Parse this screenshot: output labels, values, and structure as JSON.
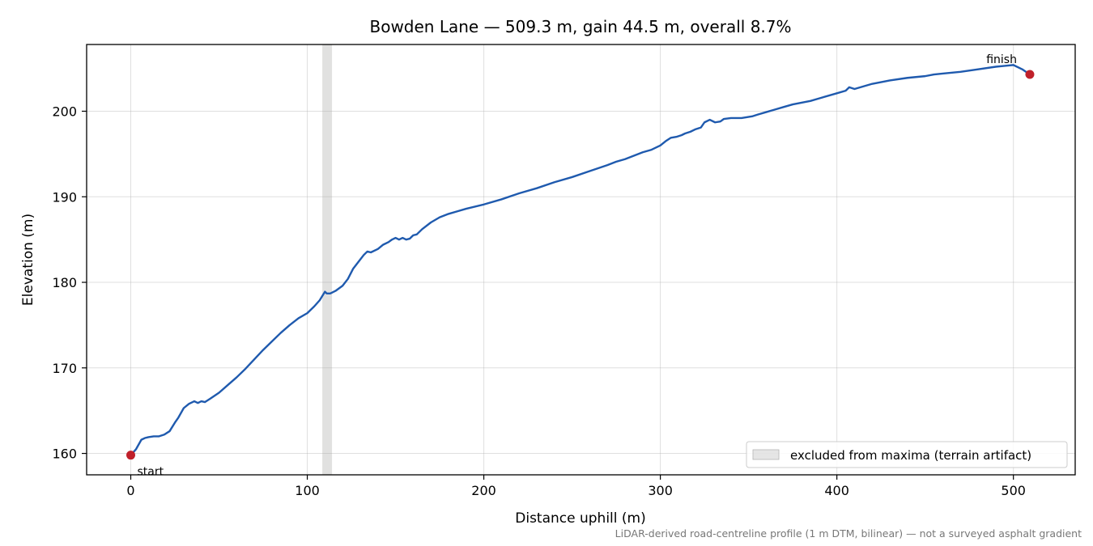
{
  "chart_data": {
    "type": "line",
    "title": "Bowden Lane — 509.3 m, gain 44.5 m, overall 8.7%",
    "xlabel": "Distance uphill (m)",
    "ylabel": "Elevation (m)",
    "xlim": [
      -25,
      535
    ],
    "ylim": [
      157.5,
      207.8
    ],
    "xticks": [
      0,
      100,
      200,
      300,
      400,
      500
    ],
    "yticks": [
      160,
      170,
      180,
      190,
      200
    ],
    "grid": true,
    "legend_position": "lower-right",
    "footnote": "LiDAR-derived road-centreline profile (1 m DTM, bilinear) — not a surveyed asphalt gradient",
    "excluded_band": {
      "x_start": 108.5,
      "x_end": 114,
      "label": "excluded from maxima (terrain artifact)"
    },
    "series": [
      {
        "color": "#1f5aae",
        "x": [
          0,
          3,
          6,
          8,
          10,
          13,
          16,
          19,
          22,
          25,
          27,
          30,
          33,
          36,
          38,
          40,
          42,
          45,
          50,
          55,
          60,
          65,
          70,
          75,
          80,
          85,
          90,
          95,
          100,
          104,
          107,
          110,
          111,
          113,
          116,
          120,
          123,
          126,
          129,
          132,
          134,
          136,
          140,
          143,
          146,
          148,
          150,
          152,
          154,
          156,
          158,
          160,
          162,
          165,
          170,
          175,
          180,
          185,
          190,
          200,
          210,
          220,
          230,
          240,
          250,
          260,
          270,
          275,
          280,
          290,
          295,
          300,
          303,
          306,
          309,
          312,
          314,
          317,
          320,
          323,
          325,
          328,
          331,
          334,
          336,
          340,
          346,
          352,
          355,
          360,
          365,
          370,
          375,
          380,
          385,
          390,
          400,
          405,
          407,
          410,
          420,
          430,
          440,
          450,
          455,
          460,
          470,
          480,
          490,
          495,
          500,
          505,
          509.3
        ],
        "y": [
          159.8,
          160.5,
          161.6,
          161.8,
          161.9,
          162.0,
          162.0,
          162.2,
          162.6,
          163.6,
          164.2,
          165.3,
          165.8,
          166.1,
          165.9,
          166.1,
          166.0,
          166.4,
          167.1,
          168.0,
          168.9,
          169.9,
          171.0,
          172.1,
          173.1,
          174.1,
          175.0,
          175.8,
          176.4,
          177.2,
          177.9,
          178.9,
          178.7,
          178.7,
          179.0,
          179.6,
          180.4,
          181.6,
          182.4,
          183.2,
          183.6,
          183.5,
          183.9,
          184.4,
          184.7,
          185.0,
          185.2,
          185.0,
          185.2,
          185.0,
          185.1,
          185.5,
          185.6,
          186.2,
          187.0,
          187.6,
          188.0,
          188.3,
          188.6,
          189.1,
          189.7,
          190.4,
          191.0,
          191.7,
          192.3,
          193.0,
          193.7,
          194.1,
          194.4,
          195.2,
          195.5,
          196.0,
          196.5,
          196.9,
          197.0,
          197.2,
          197.4,
          197.6,
          197.9,
          198.1,
          198.7,
          199.0,
          198.7,
          198.8,
          199.1,
          199.2,
          199.2,
          199.4,
          199.6,
          199.9,
          200.2,
          200.5,
          200.8,
          201.0,
          201.2,
          201.5,
          202.1,
          202.4,
          202.8,
          202.6,
          203.2,
          203.6,
          203.9,
          204.1,
          204.3,
          204.4,
          204.6,
          204.9,
          205.2,
          205.3,
          205.4,
          204.9,
          204.3
        ]
      }
    ],
    "markers": [
      {
        "x": 0,
        "y": 159.8,
        "label": "start",
        "color": "#c0202a"
      },
      {
        "x": 509.3,
        "y": 204.3,
        "label": "finish",
        "color": "#c0202a"
      }
    ]
  }
}
